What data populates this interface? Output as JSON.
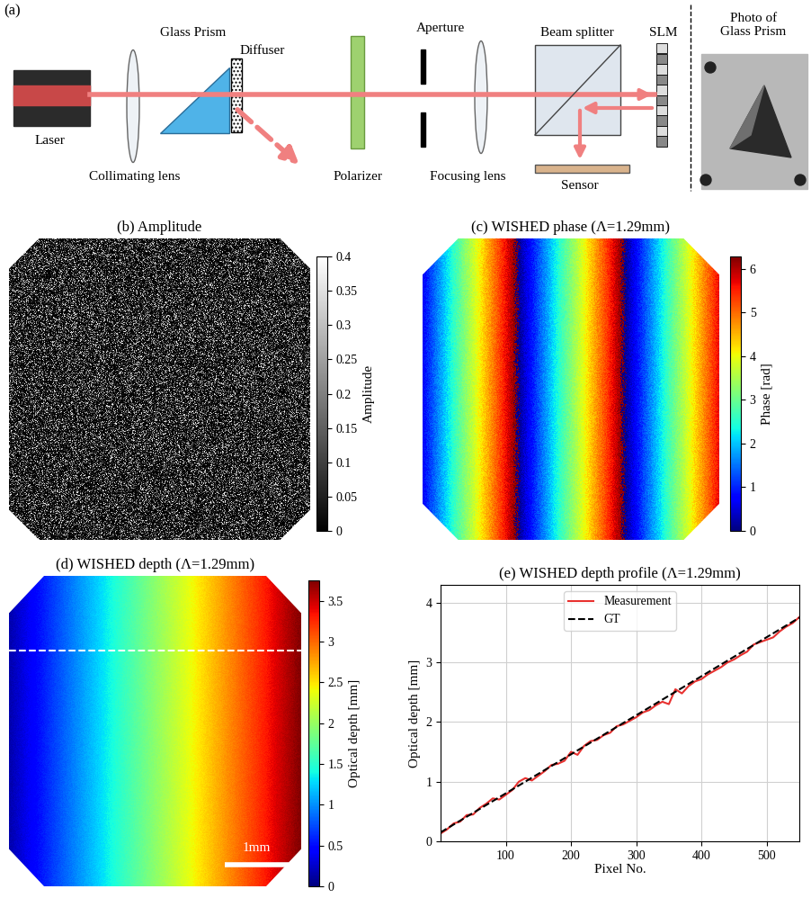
{
  "panel_a": {
    "label": "(a)",
    "components": {
      "laser": "Laser",
      "collimating_lens": "Collimating lens",
      "glass_prism": "Glass Prism",
      "diffuser": "Diffuser",
      "polarizer": "Polarizer",
      "aperture": "Aperture",
      "focusing_lens": "Focusing lens",
      "beam_splitter": "Beam splitter",
      "slm": "SLM",
      "sensor": "Sensor"
    },
    "photo_caption": "Photo of\nGlass Prism"
  },
  "panel_b": {
    "title": "(b) Amplitude",
    "colorbar": {
      "label": "Amplitude",
      "range": [
        0,
        0.4
      ],
      "ticks": [
        0,
        0.05,
        0.1,
        0.15,
        0.2,
        0.25,
        0.3,
        0.35,
        0.4
      ]
    }
  },
  "panel_c": {
    "title": "(c) WISHED phase (Λ=1.29mm)",
    "synthetic_wavelength_mm": 1.29,
    "colorbar": {
      "label": "Phase [rad]",
      "range": [
        0,
        6.28
      ],
      "ticks": [
        0,
        1,
        2,
        3,
        4,
        5,
        6
      ]
    }
  },
  "panel_d": {
    "title": "(d) WISHED depth (Λ=1.29mm)",
    "scale_bar": "1mm",
    "colorbar": {
      "label": "Optical depth [mm]",
      "range": [
        0,
        3.75
      ],
      "ticks": [
        0,
        0.5,
        1,
        1.5,
        2,
        2.5,
        3,
        3.5
      ]
    }
  },
  "chart_data": {
    "type": "line",
    "title": "(e) WISHED depth profile (Λ=1.29mm)",
    "x_label": "Pixel No.",
    "y_label": "Optical depth [mm]",
    "xlim": [
      0,
      550
    ],
    "xticks": [
      100,
      200,
      300,
      400,
      500
    ],
    "ylim": [
      0,
      4.3
    ],
    "yticks": [
      0,
      1,
      2,
      3,
      4
    ],
    "grid": true,
    "legend": "upper center",
    "series": [
      {
        "name": "Measurement",
        "color": "#e8312f",
        "line_style": "solid",
        "x": [
          0,
          10,
          20,
          30,
          40,
          50,
          60,
          70,
          80,
          90,
          100,
          110,
          120,
          130,
          140,
          150,
          160,
          170,
          180,
          190,
          200,
          210,
          220,
          230,
          240,
          250,
          260,
          270,
          280,
          290,
          300,
          310,
          320,
          330,
          340,
          350,
          360,
          370,
          380,
          390,
          400,
          410,
          420,
          430,
          440,
          450,
          460,
          470,
          480,
          490,
          500,
          510,
          520,
          530,
          540,
          550
        ],
        "values": [
          0.13,
          0.2,
          0.3,
          0.33,
          0.44,
          0.45,
          0.56,
          0.63,
          0.72,
          0.7,
          0.78,
          0.86,
          1.0,
          1.06,
          1.02,
          1.1,
          1.18,
          1.28,
          1.3,
          1.35,
          1.5,
          1.45,
          1.6,
          1.68,
          1.7,
          1.78,
          1.82,
          1.93,
          1.96,
          2.02,
          2.08,
          2.16,
          2.2,
          2.28,
          2.34,
          2.3,
          2.55,
          2.48,
          2.6,
          2.68,
          2.72,
          2.8,
          2.86,
          2.92,
          3.0,
          3.05,
          3.12,
          3.18,
          3.3,
          3.34,
          3.38,
          3.42,
          3.52,
          3.6,
          3.66,
          3.76
        ]
      },
      {
        "name": "GT",
        "color": "#000000",
        "line_style": "dashed",
        "x": [
          0,
          550
        ],
        "values": [
          0.15,
          3.75
        ]
      }
    ]
  }
}
